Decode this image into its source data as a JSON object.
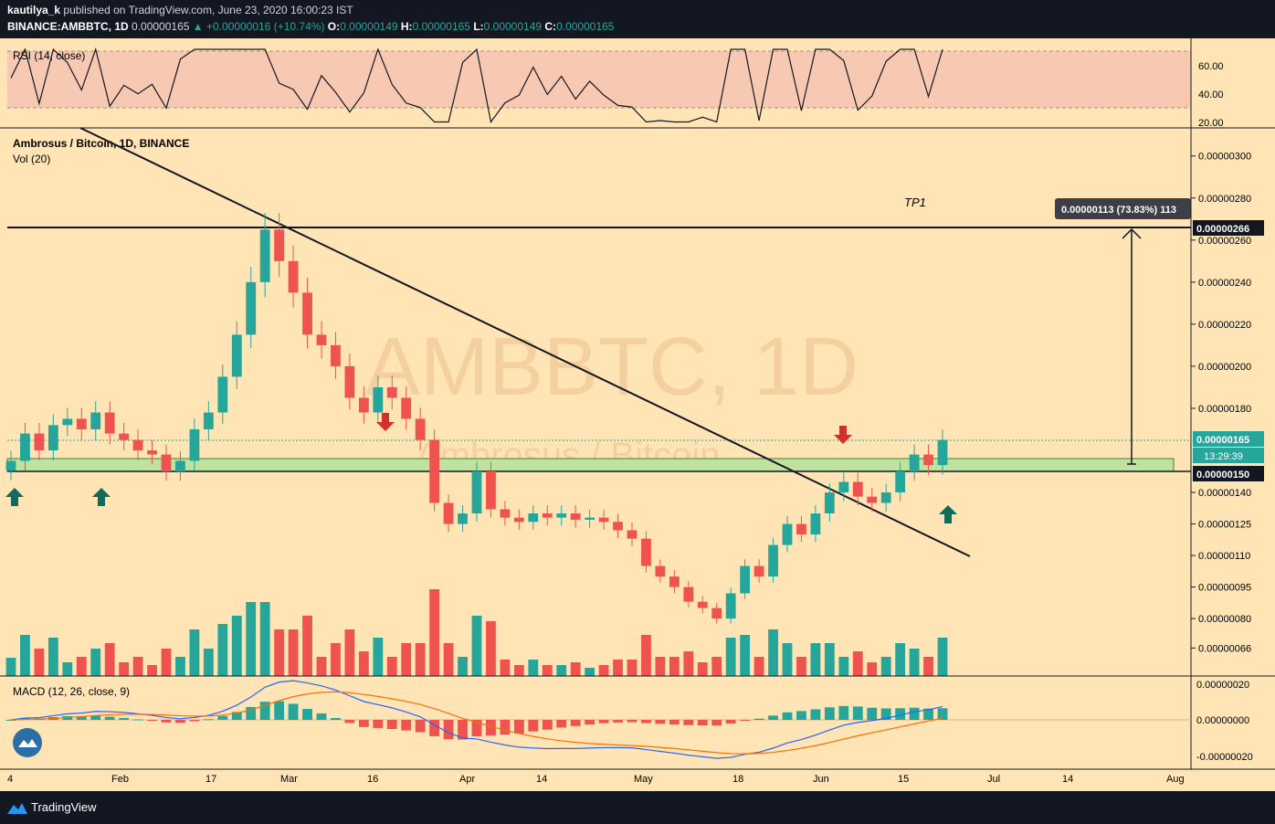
{
  "header": {
    "author": "kautilya_k",
    "published": "published on TradingView.com, June 23, 2020 16:00:23 IST",
    "symbol": "BINANCE:AMBBTC, 1D",
    "last": "0.00000165",
    "change": "+0.00000016 (+10.74%)",
    "o_label": "O:",
    "o": "0.00000149",
    "h_label": "H:",
    "h": "0.00000165",
    "l_label": "L:",
    "l": "0.00000149",
    "c_label": "C:",
    "c": "0.00000165"
  },
  "rsi": {
    "title": "RSI (14, close)",
    "ticks": [
      "60.00",
      "40.00",
      "20.00"
    ]
  },
  "main": {
    "title": "Ambrosus / Bitcoin, 1D, BINANCE",
    "vol_label": "Vol (20)",
    "watermark": "AMBBTC, 1D",
    "watermark_sub": "Ambrosus / Bitcoin",
    "tp_label": "TP1",
    "measure_label": "0.00000113 (73.83%) 113",
    "price_ticks": [
      "0.00000300",
      "0.00000280",
      "0.00000260",
      "0.00000240",
      "0.00000220",
      "0.00000200",
      "0.00000180",
      "0.00000140",
      "0.00000125",
      "0.00000110",
      "0.00000095",
      "0.00000080",
      "0.00000066"
    ],
    "tag_resistance": "0.00000266",
    "tag_last": "0.00000165",
    "tag_timer": "13:29:39",
    "tag_support": "0.00000150"
  },
  "macd": {
    "title": "MACD (12, 26, close, 9)",
    "ticks": [
      "0.00000020",
      "0.00000000",
      "-0.00000020"
    ]
  },
  "xaxis": [
    "4",
    "Feb",
    "17",
    "Mar",
    "16",
    "Apr",
    "14",
    "May",
    "18",
    "Jun",
    "15",
    "Jul",
    "14",
    "Aug"
  ],
  "footer": {
    "brand": "TradingView"
  },
  "colors": {
    "background": "#FFE4B5",
    "up": "#26a69a",
    "down": "#ef5350",
    "rsi_band": "#F7C9B2",
    "zone": "#BEE3A0",
    "arrow_up": "#0f6b5c",
    "arrow_down": "#d0312d"
  },
  "chart_data": {
    "type": "candlestick",
    "title": "Ambrosus / Bitcoin, 1D, BINANCE",
    "description_levels": {
      "resistance": 2.66e-06,
      "support_zone": [
        1.5e-06,
        1.56e-06
      ],
      "last_close": 1.65e-06
    },
    "x_range": [
      "2020-01-04",
      "2020-08-01"
    ],
    "y_range": [
      6e-07,
      3.1e-06
    ],
    "closes": [
      1.55e-06,
      1.68e-06,
      1.6e-06,
      1.72e-06,
      1.75e-06,
      1.7e-06,
      1.78e-06,
      1.68e-06,
      1.65e-06,
      1.6e-06,
      1.58e-06,
      1.5e-06,
      1.55e-06,
      1.7e-06,
      1.78e-06,
      1.95e-06,
      2.15e-06,
      2.4e-06,
      2.65e-06,
      2.5e-06,
      2.35e-06,
      2.15e-06,
      2.1e-06,
      2e-06,
      1.85e-06,
      1.78e-06,
      1.9e-06,
      1.85e-06,
      1.75e-06,
      1.65e-06,
      1.35e-06,
      1.25e-06,
      1.3e-06,
      1.5e-06,
      1.32e-06,
      1.28e-06,
      1.26e-06,
      1.3e-06,
      1.28e-06,
      1.3e-06,
      1.27e-06,
      1.28e-06,
      1.26e-06,
      1.22e-06,
      1.18e-06,
      1.05e-06,
      1e-06,
      9.5e-07,
      8.8e-07,
      8.5e-07,
      8e-07,
      9.2e-07,
      1.05e-06,
      1e-06,
      1.15e-06,
      1.25e-06,
      1.2e-06,
      1.3e-06,
      1.4e-06,
      1.45e-06,
      1.38e-06,
      1.35e-06,
      1.4e-06,
      1.5e-06,
      1.58e-06,
      1.53e-06,
      1.65e-06
    ],
    "rsi_ticks": [
      60,
      40,
      20
    ],
    "macd_ticks": [
      2e-07,
      0.0,
      -2e-07
    ]
  }
}
